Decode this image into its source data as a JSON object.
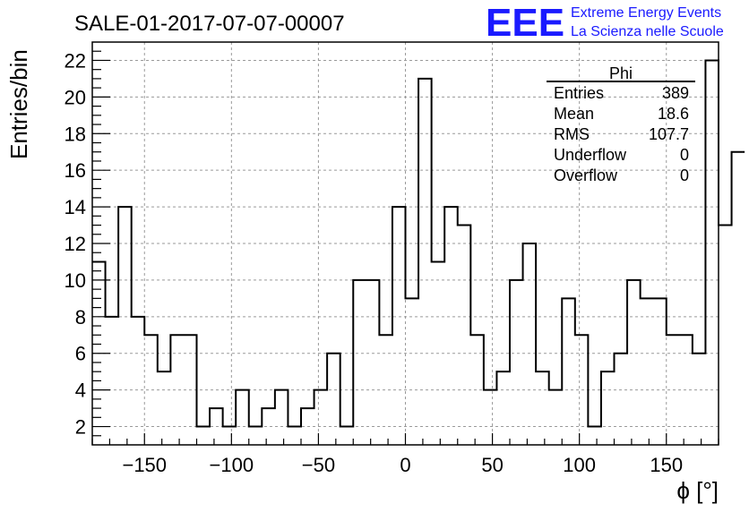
{
  "title": "SALE-01-2017-07-07-00007",
  "logo": {
    "text": "EEE",
    "line1": "Extreme Energy Events",
    "line2": "La Scienza nelle Scuole",
    "color": "#1a1aff"
  },
  "stats": {
    "title": "Phi",
    "rows": [
      {
        "label": "Entries",
        "value": "389"
      },
      {
        "label": "Mean",
        "value": "18.6"
      },
      {
        "label": "RMS",
        "value": "107.7"
      },
      {
        "label": "Underflow",
        "value": "0"
      },
      {
        "label": "Overflow",
        "value": "0"
      }
    ]
  },
  "chart_data": {
    "type": "histogram",
    "title": "SALE-01-2017-07-07-00007",
    "xlabel": "ϕ [°]",
    "ylabel": "Entries/bin",
    "xlim": [
      -180,
      180
    ],
    "ylim": [
      1,
      23
    ],
    "xticks": [
      -150,
      -100,
      -50,
      0,
      50,
      100,
      150
    ],
    "xtick_labels": [
      "−150",
      "−100",
      "−50",
      "0",
      "50",
      "100",
      "150"
    ],
    "yticks": [
      2,
      4,
      6,
      8,
      10,
      12,
      14,
      16,
      18,
      20,
      22
    ],
    "grid": true,
    "bin_width": 7.5,
    "bin_edges_start": -180,
    "values": [
      11,
      8,
      14,
      8,
      7,
      5,
      7,
      7,
      2,
      3,
      2,
      4,
      2,
      3,
      4,
      2,
      3,
      4,
      6,
      2,
      10,
      10,
      7,
      14,
      9,
      21,
      11,
      14,
      13,
      7,
      4,
      5,
      10,
      12,
      5,
      4,
      9,
      7,
      2,
      5,
      6,
      10,
      9,
      9,
      7,
      7,
      6,
      22,
      13,
      17
    ],
    "line_color": "#000000"
  }
}
